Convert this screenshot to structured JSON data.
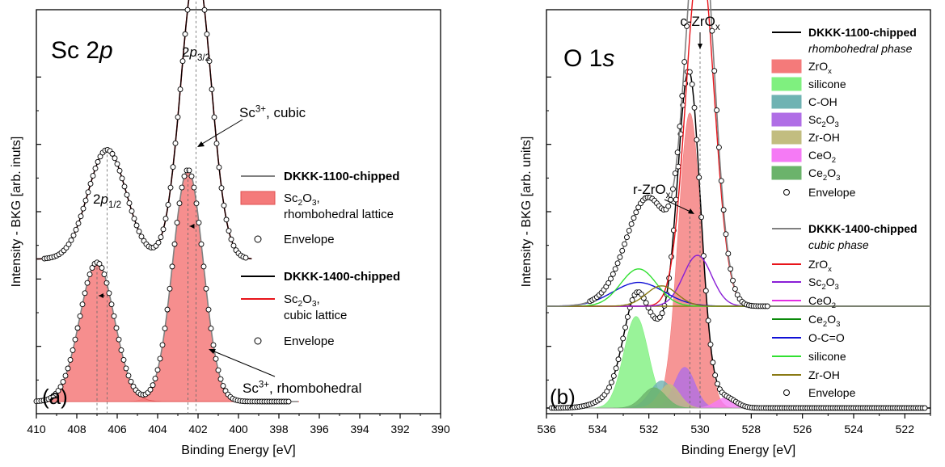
{
  "chart_data": [
    {
      "type": "line",
      "panel_label": "(a)",
      "title": "Sc 2p",
      "xlabel": "Binding Energy [eV]",
      "ylabel": "Intensity - BKG [arb. inuts]",
      "xlim": [
        410,
        390
      ],
      "x_reversed": true,
      "x_ticks": [
        410,
        408,
        406,
        404,
        402,
        400,
        398,
        396,
        394,
        392,
        390
      ],
      "y_ticks_shown": false,
      "peak_labels": {
        "p32": {
          "main": "2p",
          "sub": "3/2",
          "x": 402.1
        },
        "p12": {
          "main": "2p",
          "sub": "1/2",
          "x": 406.5
        }
      },
      "annotations": {
        "cubic": {
          "text": "Sc",
          "sup": "3+",
          "rest": ", cubic"
        },
        "rhombo": {
          "text": "Sc",
          "sup": "3+",
          "rest": ", rhombohedral"
        }
      },
      "legend": {
        "placement": "right",
        "entries": [
          {
            "kind": "line",
            "color": "#808080",
            "label": "DKKK-1100-chipped",
            "bold": true
          },
          {
            "kind": "fill",
            "color": "#f47a7a",
            "label": "Sc",
            "sub": "2",
            "label2": "O",
            "sub2": "3",
            "label3": ",",
            "line2": "rhombohedral lattice"
          },
          {
            "kind": "circle",
            "label": "Envelope"
          },
          {
            "kind": "line",
            "color": "#000000",
            "label": "DKKK-1400-chipped",
            "bold": true
          },
          {
            "kind": "line",
            "color": "#e8141a",
            "label": "Sc",
            "sub": "2",
            "label2": "O",
            "sub2": "3",
            "label3": ",",
            "line2": "cubic lattice"
          },
          {
            "kind": "circle",
            "label": "Envelope"
          }
        ]
      },
      "series": [
        {
          "name": "DKKK-1400-chipped",
          "baseline": 0.43,
          "peaks": [
            {
              "center": 402.1,
              "height": 0.88,
              "width": 0.75
            },
            {
              "center": 406.5,
              "height": 0.33,
              "width": 0.95
            }
          ],
          "component_color": "#e8141a"
        },
        {
          "name": "DKKK-1100-chipped",
          "baseline": 0.0,
          "peaks": [
            {
              "center": 402.5,
              "height": 0.7,
              "width": 0.75
            },
            {
              "center": 407.0,
              "height": 0.42,
              "width": 0.85
            }
          ],
          "component_color": "#f47a7a"
        }
      ]
    },
    {
      "type": "line",
      "panel_label": "(b)",
      "title": "O 1s",
      "xlabel": "Binding Energy [eV]",
      "ylabel": "Intensity - BKG [arb. units]",
      "xlim": [
        536,
        521
      ],
      "x_reversed": true,
      "x_ticks": [
        536,
        534,
        532,
        530,
        528,
        526,
        524,
        522
      ],
      "y_ticks_shown": false,
      "annotations": {
        "c_zrox": {
          "text": "c-ZrO",
          "sub": "x",
          "x": 530.0
        },
        "r_zrox": {
          "text": "r-ZrO",
          "sub": "x",
          "x": 530.4
        }
      },
      "legend": {
        "placement": "right",
        "entries": [
          {
            "kind": "line",
            "color": "#000000",
            "label": "DKKK-1100-chipped",
            "bold": true
          },
          {
            "kind": "text",
            "label": "rhombohedral phase",
            "italic": true
          },
          {
            "kind": "fill",
            "color": "#f47a7a",
            "label": "ZrO",
            "sub": "x"
          },
          {
            "kind": "fill",
            "color": "#7ff07f",
            "label": "silicone"
          },
          {
            "kind": "fill",
            "color": "#6fb3b3",
            "label": "C-OH"
          },
          {
            "kind": "fill",
            "color": "#b06ee6",
            "label": "Sc",
            "sub": "2",
            "label2": "O",
            "sub2": "3"
          },
          {
            "kind": "fill",
            "color": "#c2bd80",
            "label": "Zr-OH"
          },
          {
            "kind": "fill",
            "color": "#f57af5",
            "label": "CeO",
            "sub": "2"
          },
          {
            "kind": "fill",
            "color": "#6bb36b",
            "label": "Ce",
            "sub": "2",
            "label2": "O",
            "sub2": "3"
          },
          {
            "kind": "circle",
            "label": "Envelope"
          },
          {
            "kind": "line",
            "color": "#808080",
            "label": "DKKK-1400-chipped",
            "bold": true
          },
          {
            "kind": "text",
            "label": "cubic phase",
            "italic": true
          },
          {
            "kind": "line",
            "color": "#e8141a",
            "label": "ZrO",
            "sub": "x"
          },
          {
            "kind": "line",
            "color": "#8a1fd6",
            "label": "Sc",
            "sub": "2",
            "label2": "O",
            "sub2": "3"
          },
          {
            "kind": "line",
            "color": "#e32ee3",
            "label": "CeO",
            "sub": "2"
          },
          {
            "kind": "line",
            "color": "#0a8a0a",
            "label": "Ce",
            "sub": "2",
            "label2": "O",
            "sub2": "3"
          },
          {
            "kind": "line",
            "color": "#1010d6",
            "label": "O-C=O"
          },
          {
            "kind": "line",
            "color": "#31e031",
            "label": "silicone"
          },
          {
            "kind": "line",
            "color": "#8a7a14",
            "label": "Zr-OH"
          },
          {
            "kind": "circle",
            "label": "Envelope"
          }
        ]
      },
      "series": [
        {
          "name": "DKKK-1400-chipped",
          "baseline": 0.3,
          "components": [
            {
              "name": "ZrOx",
              "center": 530.0,
              "height": 1.04,
              "width": 0.55,
              "color": "#e8141a"
            },
            {
              "name": "Sc2O3",
              "center": 530.1,
              "height": 0.15,
              "width": 0.55,
              "color": "#8a1fd6"
            },
            {
              "name": "O-C=O",
              "center": 532.4,
              "height": 0.07,
              "width": 1.0,
              "color": "#1010d6"
            },
            {
              "name": "silicone",
              "center": 532.4,
              "height": 0.11,
              "width": 0.7,
              "color": "#31e031"
            },
            {
              "name": "Zr-OH",
              "center": 531.5,
              "height": 0.06,
              "width": 0.6,
              "color": "#8a7a14"
            }
          ]
        },
        {
          "name": "DKKK-1100-chipped",
          "baseline": 0.0,
          "components": [
            {
              "name": "ZrOx",
              "center": 530.4,
              "height": 0.87,
              "width": 0.45,
              "color": "#f47a7a"
            },
            {
              "name": "silicone",
              "center": 532.5,
              "height": 0.27,
              "width": 0.48,
              "color": "#7ff07f"
            },
            {
              "name": "C-OH",
              "center": 531.5,
              "height": 0.08,
              "width": 0.45,
              "color": "#6fb3b3"
            },
            {
              "name": "Sc2O3",
              "center": 530.6,
              "height": 0.12,
              "width": 0.4,
              "color": "#b06ee6"
            },
            {
              "name": "Zr-OH",
              "center": 531.2,
              "height": 0.07,
              "width": 0.4,
              "color": "#c2bd80"
            },
            {
              "name": "CeO2",
              "center": 529.0,
              "height": 0.03,
              "width": 0.4,
              "color": "#f57af5"
            },
            {
              "name": "Ce2O3",
              "center": 531.8,
              "height": 0.06,
              "width": 0.45,
              "color": "#6bb36b"
            }
          ]
        }
      ]
    }
  ]
}
